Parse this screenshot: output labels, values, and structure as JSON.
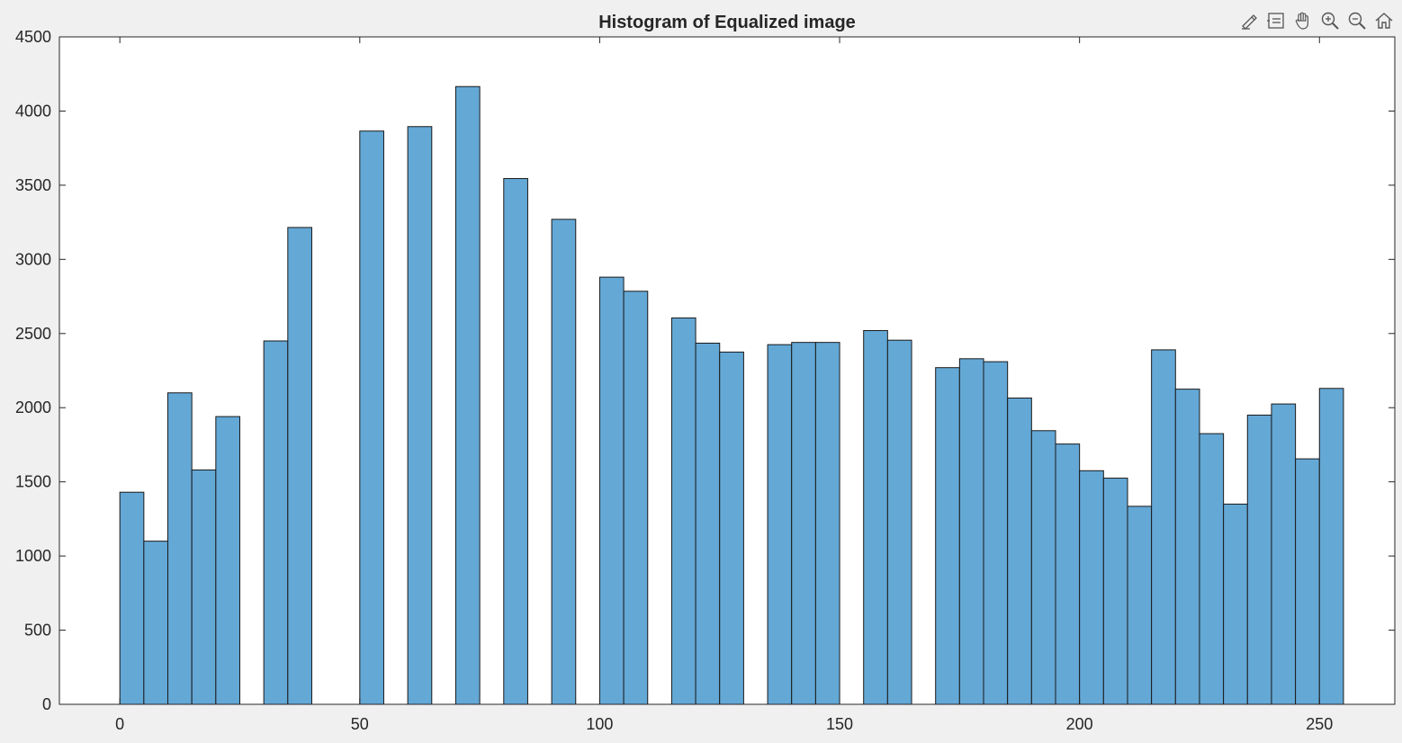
{
  "toolbar": {
    "icons": [
      "brush-data-icon",
      "data-tips-icon",
      "pan-icon",
      "zoom-in-icon",
      "zoom-out-icon",
      "restore-view-icon"
    ]
  },
  "colors": {
    "figure_bg": "#f0f0f0",
    "axes_bg": "#ffffff",
    "bar_fill": "#64a8d6",
    "bar_edge": "#1a1a1a",
    "text": "#262626"
  },
  "chart_data": {
    "type": "bar",
    "title": "Histogram of Equalized image",
    "xlabel": "",
    "ylabel": "",
    "xlim": [
      -12.6,
      265.7
    ],
    "ylim": [
      0,
      4500
    ],
    "xticks": [
      0,
      50,
      100,
      150,
      200,
      250
    ],
    "yticks": [
      0,
      500,
      1000,
      1500,
      2000,
      2500,
      3000,
      3500,
      4000,
      4500
    ],
    "bin_width": 5,
    "grid": false,
    "bins": [
      {
        "start": 0,
        "value": 1430
      },
      {
        "start": 5,
        "value": 1100
      },
      {
        "start": 10,
        "value": 2100
      },
      {
        "start": 15,
        "value": 1580
      },
      {
        "start": 20,
        "value": 1940
      },
      {
        "start": 30,
        "value": 2450
      },
      {
        "start": 35,
        "value": 3215
      },
      {
        "start": 50,
        "value": 3865
      },
      {
        "start": 60,
        "value": 3895
      },
      {
        "start": 70,
        "value": 4165
      },
      {
        "start": 80,
        "value": 3545
      },
      {
        "start": 90,
        "value": 3270
      },
      {
        "start": 100,
        "value": 2880
      },
      {
        "start": 105,
        "value": 2785
      },
      {
        "start": 115,
        "value": 2605
      },
      {
        "start": 120,
        "value": 2435
      },
      {
        "start": 125,
        "value": 2375
      },
      {
        "start": 135,
        "value": 2425
      },
      {
        "start": 140,
        "value": 2440
      },
      {
        "start": 145,
        "value": 2440
      },
      {
        "start": 155,
        "value": 2520
      },
      {
        "start": 160,
        "value": 2455
      },
      {
        "start": 170,
        "value": 2270
      },
      {
        "start": 175,
        "value": 2330
      },
      {
        "start": 180,
        "value": 2310
      },
      {
        "start": 185,
        "value": 2065
      },
      {
        "start": 190,
        "value": 1845
      },
      {
        "start": 195,
        "value": 1755
      },
      {
        "start": 200,
        "value": 1575
      },
      {
        "start": 205,
        "value": 1525
      },
      {
        "start": 210,
        "value": 1335
      },
      {
        "start": 215,
        "value": 2390
      },
      {
        "start": 220,
        "value": 2125
      },
      {
        "start": 225,
        "value": 1825
      },
      {
        "start": 230,
        "value": 1350
      },
      {
        "start": 235,
        "value": 1950
      },
      {
        "start": 240,
        "value": 2025
      },
      {
        "start": 245,
        "value": 1655
      },
      {
        "start": 250,
        "value": 2130
      }
    ]
  }
}
